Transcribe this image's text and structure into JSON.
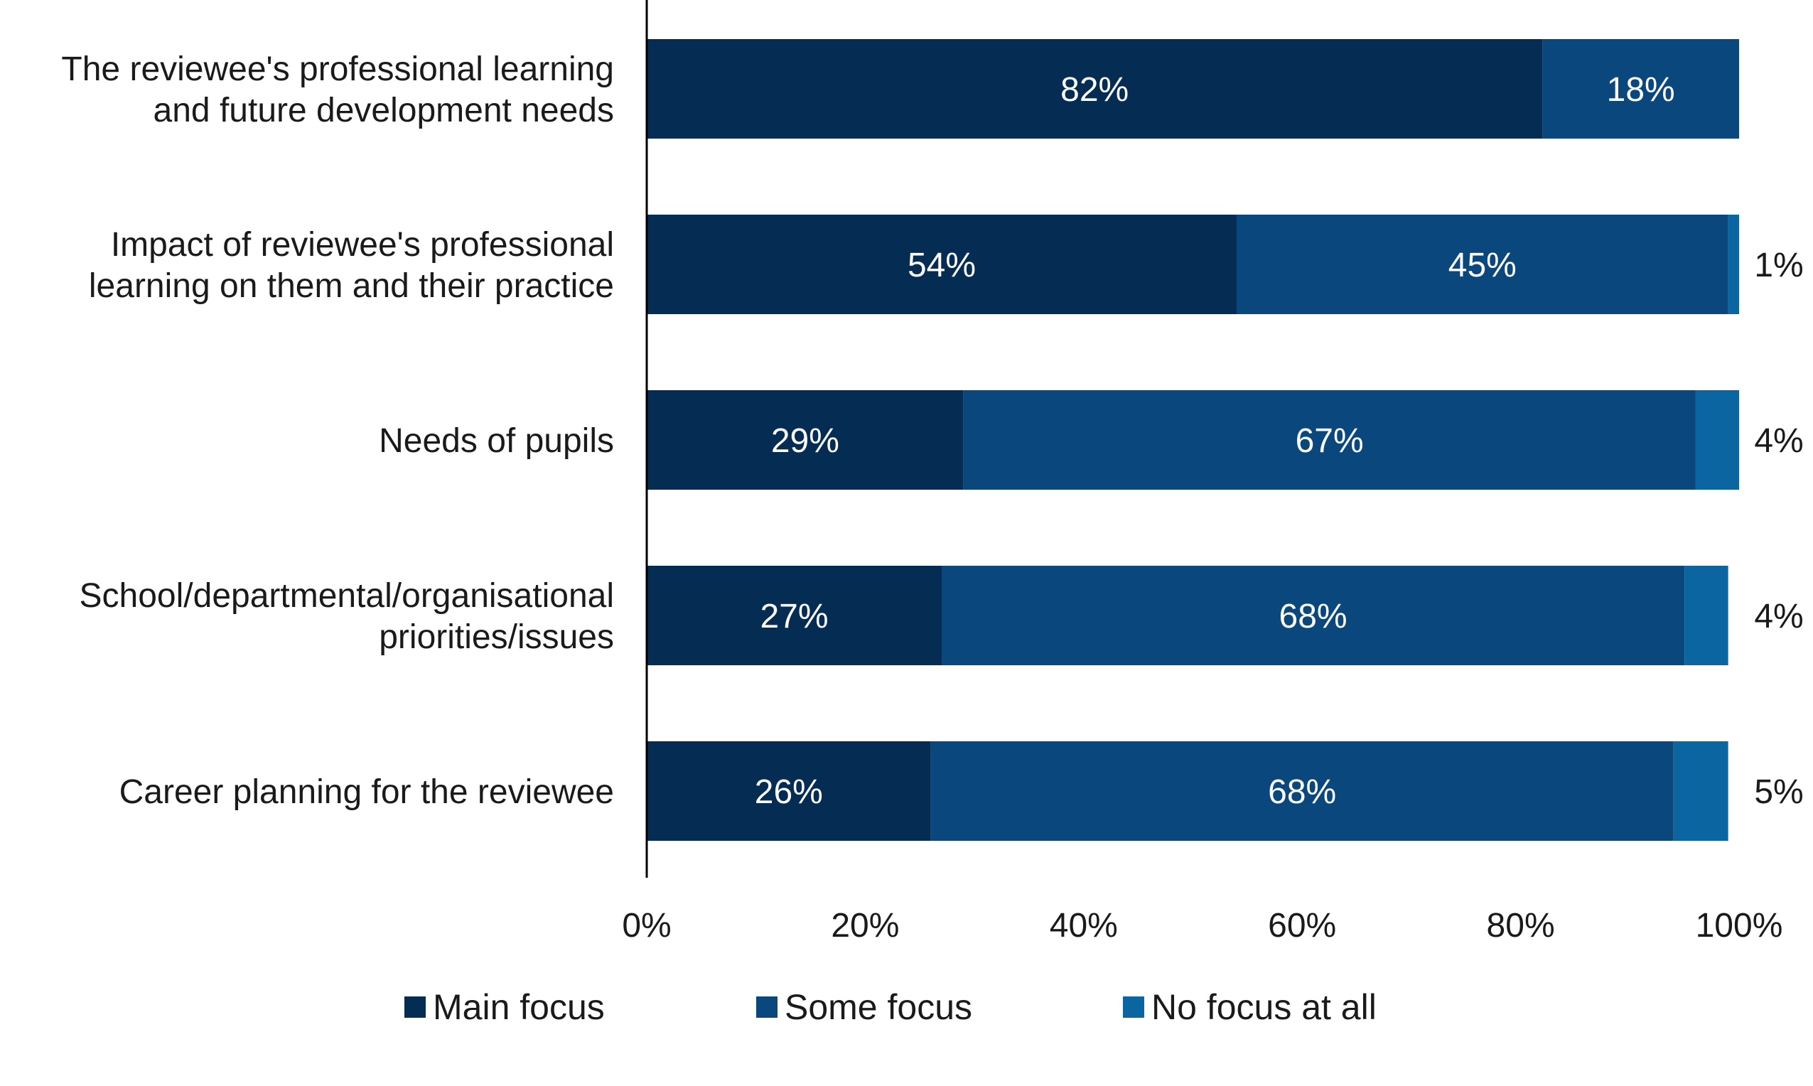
{
  "chart_data": {
    "type": "bar",
    "orientation": "horizontal",
    "stacked": true,
    "categories": [
      [
        "The reviewee's professional learning",
        "and future development needs"
      ],
      [
        "Impact of reviewee's professional",
        "learning on them and their practice"
      ],
      [
        "Needs of pupils"
      ],
      [
        "School/departmental/organisational",
        "priorities/issues"
      ],
      [
        "Career planning for the reviewee"
      ]
    ],
    "series": [
      {
        "name": "Main focus",
        "color": "#052c52",
        "values": [
          82,
          54,
          29,
          27,
          26
        ],
        "labels": [
          "82%",
          "54%",
          "29%",
          "27%",
          "26%"
        ]
      },
      {
        "name": "Some focus",
        "color": "#0a477c",
        "values": [
          18,
          45,
          67,
          68,
          68
        ],
        "labels": [
          "18%",
          "45%",
          "67%",
          "68%",
          "68%"
        ]
      },
      {
        "name": "No focus at all",
        "color": "#0b65a0",
        "values": [
          0,
          1,
          4,
          4,
          5
        ],
        "labels": [
          "",
          "1%",
          "4%",
          "4%",
          "5%"
        ]
      }
    ],
    "xlim": [
      0,
      100
    ],
    "xticks": [
      "0%",
      "20%",
      "40%",
      "60%",
      "80%",
      "100%"
    ],
    "grid": false,
    "legend_position": "bottom"
  }
}
